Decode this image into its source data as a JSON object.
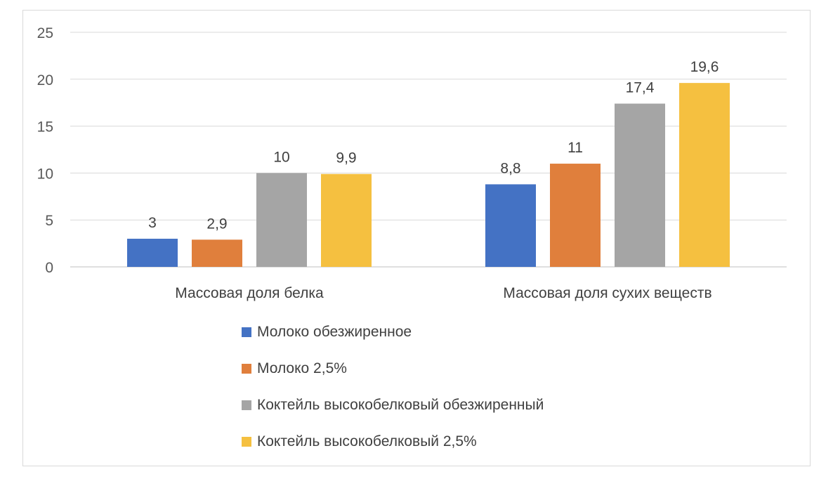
{
  "chart_data": {
    "type": "bar",
    "categories": [
      "Массовая доля белка",
      "Массовая доля сухих веществ"
    ],
    "series": [
      {
        "name": "Молоко обезжиренное",
        "color": "#4472c4",
        "values": [
          3,
          8.8
        ],
        "labels": [
          "3",
          "8,8"
        ]
      },
      {
        "name": "Молоко 2,5%",
        "color": "#e07f3c",
        "values": [
          2.9,
          11
        ],
        "labels": [
          "2,9",
          "11"
        ]
      },
      {
        "name": "Коктейль высокобелковый обезжиренный",
        "color": "#a5a5a5",
        "values": [
          10,
          17.4
        ],
        "labels": [
          "10",
          "17,4"
        ]
      },
      {
        "name": "Коктейль высокобелковый 2,5%",
        "color": "#f5c040",
        "values": [
          9.9,
          19.6
        ],
        "labels": [
          "9,9",
          "19,6"
        ]
      }
    ],
    "ylim": [
      0,
      25
    ],
    "yticks": [
      "0",
      "5",
      "10",
      "15",
      "20",
      "25"
    ],
    "grid": true,
    "legend_position": "bottom",
    "xlabel": "",
    "ylabel": "",
    "title": ""
  }
}
